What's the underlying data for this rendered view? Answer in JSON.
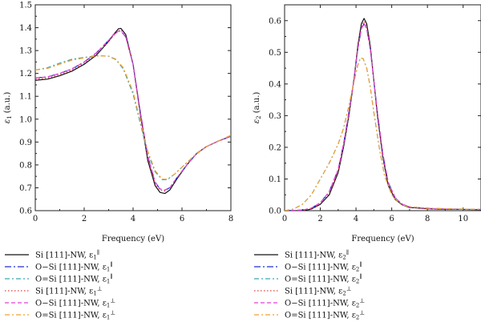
{
  "chart_data": [
    {
      "type": "line",
      "xlabel": "Frequency (eV)",
      "ylabel": "ε1 (a.u.)",
      "ylabel_parts": {
        "symbol": "ε",
        "sub": "1",
        "unit": " (a.u.)"
      },
      "xlim": [
        0,
        8
      ],
      "ylim": [
        0.6,
        1.5
      ],
      "xticks": [
        0,
        2,
        4,
        6,
        8
      ],
      "xtick_labels": [
        "0",
        "2",
        "4",
        "6",
        "8"
      ],
      "yticks": [
        0.6,
        0.7,
        0.8,
        0.9,
        1.0,
        1.1,
        1.2,
        1.3,
        1.4,
        1.5
      ],
      "ytick_labels": [
        "0.6",
        "0.7",
        "0.8",
        "0.9",
        "1.0",
        "1.1",
        "1.2",
        "1.3",
        "1.4",
        "1.5"
      ],
      "grid": false,
      "legend_position": "below",
      "series": [
        {
          "name": "Si [111]-NW, ε1∥",
          "label_main": "Si [111]-NW, ε",
          "label_sub": "1",
          "label_sup": "∥",
          "color": "#111111",
          "dash": "",
          "x": [
            0,
            0.5,
            1,
            1.5,
            2,
            2.5,
            3,
            3.2,
            3.4,
            3.5,
            3.7,
            4,
            4.3,
            4.6,
            4.9,
            5.1,
            5.3,
            5.5,
            5.8,
            6.2,
            6.6,
            7,
            7.5,
            8
          ],
          "y": [
            1.17,
            1.175,
            1.19,
            1.21,
            1.24,
            1.28,
            1.34,
            1.37,
            1.395,
            1.397,
            1.37,
            1.24,
            1.02,
            0.82,
            0.71,
            0.68,
            0.675,
            0.69,
            0.74,
            0.8,
            0.85,
            0.88,
            0.905,
            0.925
          ]
        },
        {
          "name": "O−Si [111]-NW, ε1∥",
          "label_main": "O−Si [111]-NW, ε",
          "label_sub": "1",
          "label_sup": "∥",
          "color": "#1f2fd0",
          "dash": "8 3 2 3",
          "x": [
            0,
            0.5,
            1,
            1.5,
            2,
            2.5,
            3,
            3.2,
            3.4,
            3.5,
            3.7,
            4,
            4.3,
            4.6,
            4.9,
            5.1,
            5.3,
            5.5,
            5.8,
            6.2,
            6.6,
            7,
            7.5,
            8
          ],
          "y": [
            1.18,
            1.185,
            1.2,
            1.22,
            1.25,
            1.29,
            1.345,
            1.37,
            1.385,
            1.385,
            1.36,
            1.24,
            1.03,
            0.84,
            0.725,
            0.695,
            0.69,
            0.7,
            0.745,
            0.8,
            0.85,
            0.88,
            0.905,
            0.925
          ]
        },
        {
          "name": "O=Si [111]-NW, ε1∥",
          "label_main": "O=Si [111]-NW, ε",
          "label_sub": "1",
          "label_sup": "∥",
          "color": "#3aa7b5",
          "dash": "6 3 2 3",
          "x": [
            0,
            0.5,
            1,
            1.5,
            2,
            2.5,
            3,
            3.3,
            3.6,
            4,
            4.3,
            4.6,
            4.9,
            5.2,
            5.4,
            5.7,
            6.1,
            6.5,
            7,
            7.5,
            8
          ],
          "y": [
            1.215,
            1.225,
            1.245,
            1.262,
            1.27,
            1.278,
            1.275,
            1.26,
            1.22,
            1.11,
            0.98,
            0.85,
            0.77,
            0.735,
            0.735,
            0.76,
            0.8,
            0.84,
            0.88,
            0.905,
            0.925
          ]
        },
        {
          "name": "Si [111]-NW, ε1⊥",
          "label_main": "Si [111]-NW, ε",
          "label_sub": "1",
          "label_sup": "⊥",
          "color": "#e04040",
          "dash": "1.5 2.5",
          "x": [
            0,
            0.5,
            1,
            1.5,
            2,
            2.5,
            3,
            3.2,
            3.4,
            3.5,
            3.7,
            4,
            4.3,
            4.6,
            4.9,
            5.1,
            5.3,
            5.5,
            5.8,
            6.2,
            6.6,
            7,
            7.5,
            8
          ],
          "y": [
            1.175,
            1.18,
            1.195,
            1.215,
            1.245,
            1.285,
            1.34,
            1.365,
            1.385,
            1.39,
            1.36,
            1.24,
            1.025,
            0.83,
            0.72,
            0.69,
            0.685,
            0.7,
            0.745,
            0.8,
            0.85,
            0.88,
            0.905,
            0.925
          ]
        },
        {
          "name": "O−Si [111]-NW, ε1⊥",
          "label_main": "O−Si [111]-NW, ε",
          "label_sub": "1",
          "label_sup": "⊥",
          "color": "#e040d8",
          "dash": "5 3",
          "x": [
            0,
            0.5,
            1,
            1.5,
            2,
            2.5,
            3,
            3.2,
            3.4,
            3.5,
            3.7,
            4,
            4.3,
            4.6,
            4.9,
            5.1,
            5.3,
            5.5,
            5.8,
            6.2,
            6.6,
            7,
            7.5,
            8
          ],
          "y": [
            1.18,
            1.185,
            1.2,
            1.22,
            1.25,
            1.29,
            1.345,
            1.37,
            1.385,
            1.385,
            1.36,
            1.24,
            1.03,
            0.84,
            0.725,
            0.695,
            0.69,
            0.7,
            0.745,
            0.8,
            0.85,
            0.88,
            0.905,
            0.925
          ]
        },
        {
          "name": "O=Si [111]-NW, ε1⊥",
          "label_main": "O=Si [111]-NW, ε",
          "label_sub": "1",
          "label_sup": "⊥",
          "color": "#f0a030",
          "dash": "6 3 2 3",
          "x": [
            0,
            0.5,
            1,
            1.5,
            2,
            2.5,
            3,
            3.3,
            3.6,
            4,
            4.3,
            4.6,
            4.9,
            5.2,
            5.4,
            5.7,
            6.1,
            6.5,
            7,
            7.5,
            8
          ],
          "y": [
            1.215,
            1.222,
            1.24,
            1.258,
            1.268,
            1.276,
            1.276,
            1.262,
            1.225,
            1.12,
            0.99,
            0.86,
            0.775,
            0.738,
            0.737,
            0.76,
            0.8,
            0.84,
            0.88,
            0.905,
            0.93
          ]
        }
      ]
    },
    {
      "type": "line",
      "xlabel": "Frequency (eV)",
      "ylabel": "ε2 (a.u.)",
      "ylabel_parts": {
        "symbol": "ε",
        "sub": "2",
        "unit": " (a.u.)"
      },
      "xlim": [
        0,
        11
      ],
      "ylim": [
        0,
        0.65
      ],
      "xticks": [
        0,
        2,
        4,
        6,
        8,
        10
      ],
      "xtick_labels": [
        "0",
        "2",
        "4",
        "6",
        "8",
        "10"
      ],
      "yticks": [
        0,
        0.1,
        0.2,
        0.3,
        0.4,
        0.5,
        0.6
      ],
      "ytick_labels": [
        "0.0",
        "0.1",
        "0.2",
        "0.3",
        "0.4",
        "0.5",
        "0.6"
      ],
      "grid": false,
      "legend_position": "below",
      "series": [
        {
          "name": "Si [111]-NW, ε2∥",
          "label_main": "Si [111]-NW, ε",
          "label_sub": "2",
          "label_sup": "∥",
          "color": "#111111",
          "dash": "",
          "x": [
            0,
            1,
            1.5,
            2,
            2.5,
            3,
            3.3,
            3.6,
            3.9,
            4.1,
            4.3,
            4.45,
            4.6,
            4.8,
            5,
            5.2,
            5.5,
            5.8,
            6.2,
            6.6,
            7,
            8,
            9,
            10,
            11
          ],
          "y": [
            0,
            0,
            0.005,
            0.02,
            0.05,
            0.12,
            0.2,
            0.3,
            0.42,
            0.52,
            0.59,
            0.607,
            0.59,
            0.52,
            0.41,
            0.3,
            0.17,
            0.08,
            0.035,
            0.018,
            0.01,
            0.006,
            0.004,
            0.004,
            0.003
          ]
        },
        {
          "name": "O−Si [111]-NW, ε2∥",
          "label_main": "O−Si [111]-NW, ε",
          "label_sub": "2",
          "label_sup": "∥",
          "color": "#1f2fd0",
          "dash": "8 3 2 3",
          "x": [
            0,
            1,
            1.5,
            2,
            2.5,
            3,
            3.3,
            3.6,
            3.9,
            4.1,
            4.3,
            4.45,
            4.6,
            4.8,
            5,
            5.2,
            5.5,
            5.8,
            6.2,
            6.6,
            7,
            8,
            9,
            10,
            11
          ],
          "y": [
            0,
            0.002,
            0.008,
            0.025,
            0.06,
            0.13,
            0.21,
            0.31,
            0.42,
            0.51,
            0.575,
            0.59,
            0.575,
            0.51,
            0.41,
            0.31,
            0.18,
            0.09,
            0.04,
            0.02,
            0.012,
            0.007,
            0.005,
            0.004,
            0.004
          ]
        },
        {
          "name": "O=Si [111]-NW, ε2∥",
          "label_main": "O=Si [111]-NW, ε",
          "label_sub": "2",
          "label_sup": "∥",
          "color": "#3aa7b5",
          "dash": "6 3 2 3",
          "x": [
            0,
            0.5,
            1,
            1.5,
            2,
            2.5,
            3,
            3.3,
            3.6,
            3.9,
            4.1,
            4.25,
            4.4,
            4.6,
            4.8,
            5,
            5.3,
            5.6,
            6,
            6.5,
            7,
            8,
            9,
            10,
            11
          ],
          "y": [
            0,
            0.005,
            0.02,
            0.05,
            0.1,
            0.15,
            0.21,
            0.26,
            0.33,
            0.41,
            0.46,
            0.482,
            0.48,
            0.45,
            0.39,
            0.31,
            0.2,
            0.11,
            0.05,
            0.02,
            0.012,
            0.008,
            0.006,
            0.005,
            0.004
          ]
        },
        {
          "name": "Si [111]-NW, ε2⊥",
          "label_main": "Si [111]-NW, ε",
          "label_sub": "2",
          "label_sup": "⊥",
          "color": "#e04040",
          "dash": "1.5 2.5",
          "x": [
            0,
            1,
            1.5,
            2,
            2.5,
            3,
            3.3,
            3.6,
            3.9,
            4.1,
            4.3,
            4.45,
            4.6,
            4.8,
            5,
            5.2,
            5.5,
            5.8,
            6.2,
            6.6,
            7,
            8,
            9,
            10,
            11
          ],
          "y": [
            0,
            0.001,
            0.006,
            0.022,
            0.055,
            0.125,
            0.205,
            0.305,
            0.42,
            0.515,
            0.58,
            0.598,
            0.58,
            0.515,
            0.41,
            0.305,
            0.175,
            0.085,
            0.037,
            0.019,
            0.011,
            0.006,
            0.004,
            0.004,
            0.003
          ]
        },
        {
          "name": "O−Si [111]-NW, ε2⊥",
          "label_main": "O−Si [111]-NW, ε",
          "label_sub": "2",
          "label_sup": "⊥",
          "color": "#e040d8",
          "dash": "5 3",
          "x": [
            0,
            1,
            1.5,
            2,
            2.5,
            3,
            3.3,
            3.6,
            3.9,
            4.1,
            4.3,
            4.45,
            4.6,
            4.8,
            5,
            5.2,
            5.5,
            5.8,
            6.2,
            6.6,
            7,
            8,
            9,
            10,
            11
          ],
          "y": [
            0,
            0.002,
            0.008,
            0.025,
            0.06,
            0.13,
            0.21,
            0.31,
            0.42,
            0.51,
            0.575,
            0.59,
            0.575,
            0.51,
            0.41,
            0.31,
            0.18,
            0.09,
            0.04,
            0.02,
            0.012,
            0.007,
            0.005,
            0.004,
            0.004
          ]
        },
        {
          "name": "O=Si [111]-NW, ε2⊥",
          "label_main": "O=Si [111]-NW, ε",
          "label_sub": "2",
          "label_sup": "⊥",
          "color": "#f0a030",
          "dash": "6 3 2 3",
          "x": [
            0,
            0.5,
            1,
            1.5,
            2,
            2.5,
            3,
            3.3,
            3.6,
            3.9,
            4.1,
            4.25,
            4.4,
            4.6,
            4.8,
            5,
            5.3,
            5.6,
            6,
            6.5,
            7,
            8,
            9,
            10,
            11
          ],
          "y": [
            0,
            0.005,
            0.02,
            0.05,
            0.1,
            0.15,
            0.21,
            0.26,
            0.33,
            0.41,
            0.46,
            0.482,
            0.48,
            0.45,
            0.39,
            0.31,
            0.2,
            0.11,
            0.05,
            0.02,
            0.012,
            0.008,
            0.006,
            0.005,
            0.004
          ]
        }
      ]
    }
  ]
}
